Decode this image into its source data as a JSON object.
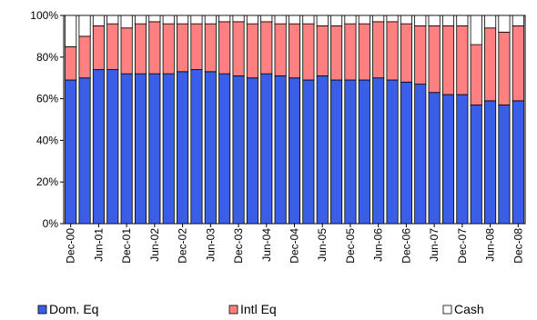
{
  "chart_data": {
    "type": "stacked_bar_100",
    "categories": [
      "Dec-00",
      null,
      "Jun-01",
      null,
      "Dec-01",
      null,
      "Jun-02",
      null,
      "Dec-02",
      null,
      "Jun-03",
      null,
      "Dec-03",
      null,
      "Jun-04",
      null,
      "Dec-04",
      null,
      "Jun-05",
      null,
      "Dec-05",
      null,
      "Jun-06",
      null,
      "Dec-06",
      null,
      "Jun-07",
      null,
      "Dec-07",
      null,
      "Jun-08",
      null,
      "Dec-08"
    ],
    "series": [
      {
        "name": "Dom. Eq",
        "color": "#3a5fe6",
        "values": [
          69,
          70,
          74,
          74,
          72,
          72,
          72,
          72,
          73,
          74,
          73,
          72,
          71,
          70,
          72,
          71,
          70,
          69,
          71,
          69,
          69,
          69,
          70,
          69,
          68,
          67,
          63,
          62,
          62,
          57,
          59,
          57,
          59
        ]
      },
      {
        "name": "Intl Eq",
        "color": "#ff8080",
        "values": [
          16,
          20,
          21,
          22,
          22,
          24,
          25,
          24,
          23,
          22,
          23,
          25,
          26,
          26,
          25,
          25,
          26,
          27,
          24,
          26,
          27,
          27,
          27,
          28,
          28,
          28,
          32,
          33,
          33,
          29,
          35,
          35,
          36
        ]
      },
      {
        "name": "Cash",
        "color": "#ffffff",
        "values": [
          15,
          10,
          5,
          4,
          6,
          4,
          3,
          4,
          4,
          4,
          4,
          3,
          3,
          4,
          3,
          4,
          4,
          4,
          5,
          5,
          4,
          4,
          3,
          3,
          4,
          5,
          5,
          5,
          5,
          14,
          6,
          8,
          5
        ]
      }
    ],
    "ylim": [
      0,
      100
    ],
    "yticks": [
      {
        "value": 0,
        "label": "0%"
      },
      {
        "value": 20,
        "label": "20%"
      },
      {
        "value": 40,
        "label": "40%"
      },
      {
        "value": 60,
        "label": "60%"
      },
      {
        "value": 80,
        "label": "80%"
      },
      {
        "value": 100,
        "label": "100%"
      }
    ],
    "legend": "bottom"
  }
}
